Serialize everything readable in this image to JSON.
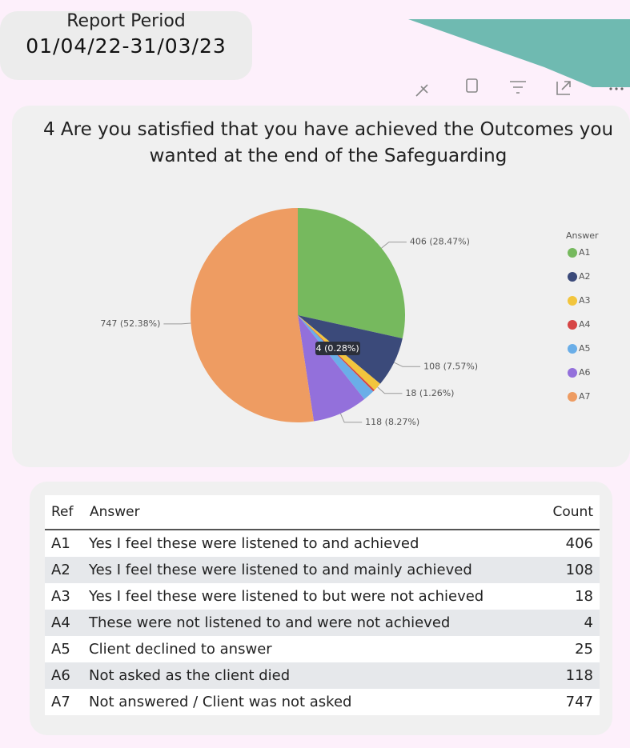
{
  "report_period": {
    "label": "Report Period",
    "value": "01/04/22-31/03/23"
  },
  "chart_data": {
    "type": "pie",
    "title": "4 Are you satisfied that you have achieved the Outcomes you wanted at the end of the Safeguarding",
    "legend_title": "Answer",
    "categories": [
      "A1",
      "A2",
      "A3",
      "A4",
      "A5",
      "A6",
      "A7"
    ],
    "values": [
      406,
      108,
      18,
      4,
      25,
      118,
      747
    ],
    "value_labels": [
      "406 (28.47%)",
      "108 (7.57%)",
      "18 (1.26%)",
      "4 (0.28%)",
      null,
      "118 (8.27%)",
      "747 (52.38%)"
    ],
    "colors": [
      "#76b95e",
      "#3b4a7a",
      "#f2c53d",
      "#d64545",
      "#6aaee8",
      "#9370db",
      "#ee9c62"
    ]
  },
  "table": {
    "header": [
      "Ref",
      "Answer",
      "Count"
    ],
    "rows": [
      [
        "A1",
        "Yes I feel these were listened to and achieved",
        406
      ],
      [
        "A2",
        "Yes I feel these were listened to and mainly achieved",
        108
      ],
      [
        "A3",
        "Yes I feel these were listened to but were not achieved",
        18
      ],
      [
        "A4",
        "These were not listened to and were not achieved",
        4
      ],
      [
        "A5",
        "Client declined to answer",
        25
      ],
      [
        "A6",
        "Not asked as the client died",
        118
      ],
      [
        "A7",
        "Not answered / Client was not asked",
        747
      ]
    ]
  }
}
